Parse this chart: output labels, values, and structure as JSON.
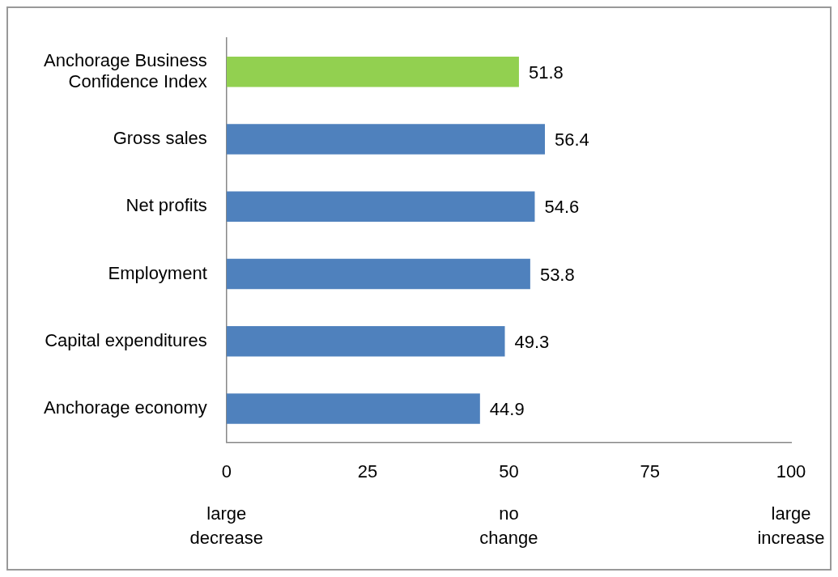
{
  "chart_data": {
    "type": "bar",
    "orientation": "horizontal",
    "categories": [
      "Anchorage Business Confidence Index",
      "Gross sales",
      "Net profits",
      "Employment",
      "Capital expenditures",
      "Anchorage economy"
    ],
    "values": [
      51.8,
      56.4,
      54.6,
      53.8,
      49.3,
      44.9
    ],
    "colors": [
      "#92d050",
      "#4f81bd",
      "#4f81bd",
      "#4f81bd",
      "#4f81bd",
      "#4f81bd"
    ],
    "xlim": [
      0,
      100
    ],
    "xticks": [
      0,
      25,
      50,
      75,
      100
    ],
    "data_labels": true,
    "grid": false,
    "legend": false,
    "annotations": [
      "large decrease",
      "no change",
      "large increase"
    ]
  }
}
